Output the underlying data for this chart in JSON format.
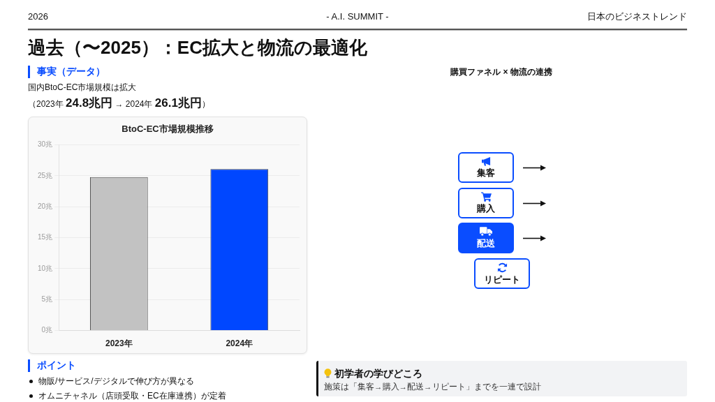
{
  "chart_data": {
    "type": "bar",
    "title": "BtoC-EC市場規模推移",
    "categories": [
      "2023年",
      "2024年"
    ],
    "values": [
      24.8,
      26.1
    ],
    "colors": [
      "#c2c2c2",
      "#0047ff"
    ],
    "ylim": [
      0,
      30
    ],
    "yticks": [
      {
        "value": 0,
        "label": "0兆"
      },
      {
        "value": 5,
        "label": "5兆"
      },
      {
        "value": 10,
        "label": "10兆"
      },
      {
        "value": 15,
        "label": "15兆"
      },
      {
        "value": 20,
        "label": "20兆"
      },
      {
        "value": 25,
        "label": "25兆"
      },
      {
        "value": 30,
        "label": "30兆"
      }
    ],
    "grid": "y",
    "annotations": [
      "2026",
      "- A.I. SUMMIT -",
      "日本のビジネストレンド",
      "過去（〜2025）：EC拡大と物流の最適化",
      "事実（データ）",
      "国内BtoC-EC市場規模は拡大",
      "（2023年 24.8兆円 → 2024年 26.1兆円）",
      "購買ファネル × 物流の連携",
      "集客",
      "購入",
      "配送",
      "リピート",
      "ポイント",
      "物販/サービス/デジタルで伸び方が異なる",
      "オムニチャネル（店頭受取・EC在庫連携）が定着",
      "初学者の学びどころ",
      "施策は「集客→購入→配送→リピート」までを一連で設計"
    ]
  }
}
